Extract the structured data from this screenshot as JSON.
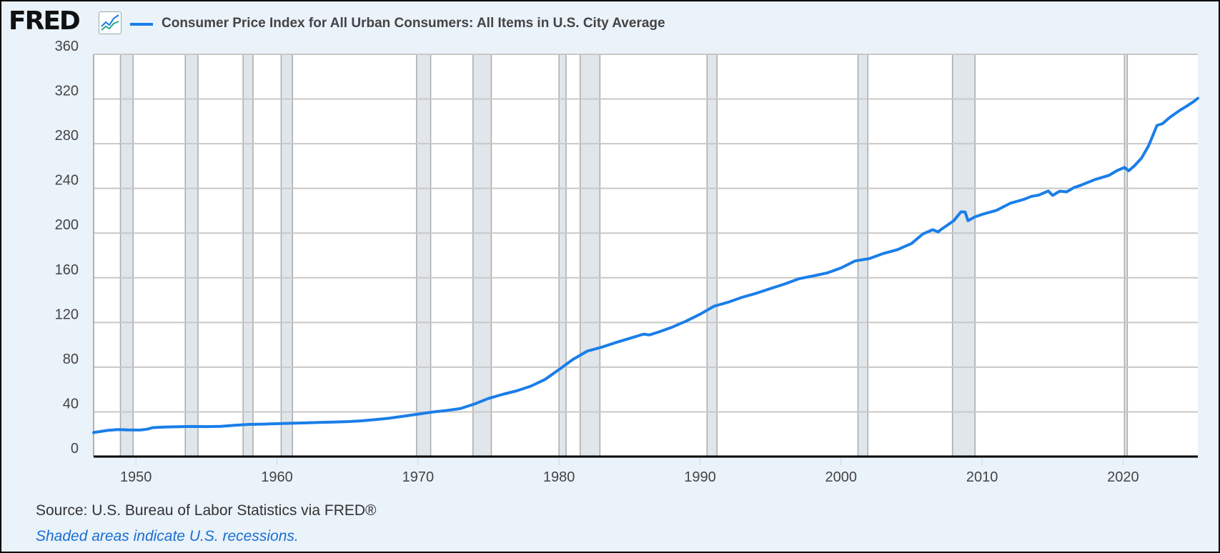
{
  "header": {
    "logo_text": "FRED",
    "logo_icon": "line-chart-icon",
    "legend_label": "Consumer Price Index for All Urban Consumers: All Items in U.S. City Average",
    "legend_color": "#1a7ee8"
  },
  "footer": {
    "source": "Source: U.S. Bureau of Labor Statistics via FRED®",
    "note": "Shaded areas indicate U.S. recessions."
  },
  "chart_data": {
    "type": "line",
    "title": "Consumer Price Index for All Urban Consumers: All Items in U.S. City Average",
    "xlabel": "",
    "ylabel": "",
    "xlim": [
      1947,
      2025.3
    ],
    "ylim": [
      0,
      360
    ],
    "grid": true,
    "legend": "top-left",
    "x_ticks": [
      1950,
      1960,
      1970,
      1980,
      1990,
      2000,
      2010,
      2020
    ],
    "y_ticks": [
      0,
      40,
      80,
      120,
      160,
      200,
      240,
      280,
      320,
      360
    ],
    "recessions": [
      [
        1948.9,
        1949.8
      ],
      [
        1953.5,
        1954.4
      ],
      [
        1957.6,
        1958.3
      ],
      [
        1960.3,
        1961.1
      ],
      [
        1969.9,
        1970.9
      ],
      [
        1973.9,
        1975.2
      ],
      [
        1980.0,
        1980.5
      ],
      [
        1981.5,
        1982.9
      ],
      [
        1990.5,
        1991.2
      ],
      [
        2001.2,
        2001.9
      ],
      [
        2007.9,
        2009.5
      ],
      [
        2020.1,
        2020.3
      ]
    ],
    "series": [
      {
        "name": "Consumer Price Index for All Urban Consumers: All Items in U.S. City Average",
        "color": "#1a7ee8",
        "points": [
          [
            1947,
            21.5
          ],
          [
            1948,
            23.4
          ],
          [
            1948.7,
            24.1
          ],
          [
            1949.5,
            23.8
          ],
          [
            1950.3,
            23.7
          ],
          [
            1950.8,
            24.5
          ],
          [
            1951.2,
            25.9
          ],
          [
            1952,
            26.4
          ],
          [
            1953,
            26.7
          ],
          [
            1954,
            26.9
          ],
          [
            1955,
            26.8
          ],
          [
            1956,
            27.0
          ],
          [
            1957,
            28.0
          ],
          [
            1958,
            28.8
          ],
          [
            1959,
            29.0
          ],
          [
            1960,
            29.4
          ],
          [
            1961,
            29.8
          ],
          [
            1962,
            30.1
          ],
          [
            1963,
            30.5
          ],
          [
            1964,
            30.9
          ],
          [
            1965,
            31.3
          ],
          [
            1966,
            32.0
          ],
          [
            1967,
            33.1
          ],
          [
            1968,
            34.4
          ],
          [
            1969,
            36.1
          ],
          [
            1970,
            38.0
          ],
          [
            1971,
            39.8
          ],
          [
            1972,
            41.2
          ],
          [
            1973,
            42.9
          ],
          [
            1974,
            47.0
          ],
          [
            1975,
            52.0
          ],
          [
            1976,
            55.6
          ],
          [
            1977,
            58.8
          ],
          [
            1978,
            63.0
          ],
          [
            1979,
            68.9
          ],
          [
            1980,
            77.8
          ],
          [
            1981,
            87.0
          ],
          [
            1982,
            94.3
          ],
          [
            1983,
            97.8
          ],
          [
            1984,
            101.9
          ],
          [
            1985,
            105.7
          ],
          [
            1986,
            109.6
          ],
          [
            1986.4,
            108.8
          ],
          [
            1987,
            111.2
          ],
          [
            1988,
            115.7
          ],
          [
            1989,
            121.1
          ],
          [
            1990,
            127.4
          ],
          [
            1991,
            134.6
          ],
          [
            1992,
            138.1
          ],
          [
            1993,
            142.6
          ],
          [
            1994,
            146.2
          ],
          [
            1995,
            150.3
          ],
          [
            1996,
            154.4
          ],
          [
            1997,
            159.1
          ],
          [
            1998,
            161.6
          ],
          [
            1999,
            164.3
          ],
          [
            2000,
            168.8
          ],
          [
            2001,
            175.1
          ],
          [
            2002,
            177.1
          ],
          [
            2003,
            181.7
          ],
          [
            2004,
            185.2
          ],
          [
            2005,
            190.7
          ],
          [
            2005.8,
            199.2
          ],
          [
            2006.5,
            203.0
          ],
          [
            2006.9,
            201.0
          ],
          [
            2007,
            202.4
          ],
          [
            2008,
            211.1
          ],
          [
            2008.5,
            219.0
          ],
          [
            2008.8,
            218.8
          ],
          [
            2009.0,
            211.1
          ],
          [
            2009.5,
            214.5
          ],
          [
            2010,
            216.7
          ],
          [
            2011,
            220.2
          ],
          [
            2012,
            226.7
          ],
          [
            2013,
            230.3
          ],
          [
            2013.5,
            232.9
          ],
          [
            2014,
            233.9
          ],
          [
            2014.7,
            237.7
          ],
          [
            2015.0,
            233.7
          ],
          [
            2015.5,
            237.5
          ],
          [
            2016,
            236.9
          ],
          [
            2016.5,
            240.6
          ],
          [
            2017,
            242.8
          ],
          [
            2018,
            247.9
          ],
          [
            2019,
            251.7
          ],
          [
            2019.6,
            256.1
          ],
          [
            2020.1,
            258.7
          ],
          [
            2020.4,
            255.8
          ],
          [
            2020.8,
            260.2
          ],
          [
            2021.3,
            267.0
          ],
          [
            2021.8,
            277.9
          ],
          [
            2022.4,
            296.3
          ],
          [
            2022.8,
            298.0
          ],
          [
            2023.3,
            303.4
          ],
          [
            2024,
            309.7
          ],
          [
            2024.5,
            313.5
          ],
          [
            2025,
            317.7
          ],
          [
            2025.3,
            320.6
          ]
        ]
      }
    ]
  }
}
